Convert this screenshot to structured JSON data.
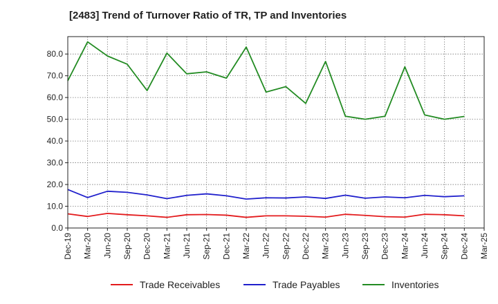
{
  "chart_data": {
    "type": "line",
    "title": "[2483]  Trend of Turnover Ratio of TR, TP and Inventories",
    "xlabel": "",
    "ylabel": "",
    "x": [
      "Dec-19",
      "Mar-20",
      "Jun-20",
      "Sep-20",
      "Dec-20",
      "Mar-21",
      "Jun-21",
      "Sep-21",
      "Dec-21",
      "Mar-22",
      "Jun-22",
      "Sep-22",
      "Dec-22",
      "Mar-23",
      "Jun-23",
      "Sep-23",
      "Dec-23",
      "Mar-24",
      "Jun-24",
      "Sep-24",
      "Dec-24",
      "Mar-25"
    ],
    "ylim": [
      0,
      88
    ],
    "yticks": [
      0,
      10,
      20,
      30,
      40,
      50,
      60,
      70,
      80
    ],
    "ytick_labels": [
      "0.0",
      "10.0",
      "20.0",
      "30.0",
      "40.0",
      "50.0",
      "60.0",
      "70.0",
      "80.0"
    ],
    "grid": true,
    "legend_position": "bottom",
    "series": [
      {
        "name": "Trade Receivables",
        "color": "#e31a1c",
        "values": [
          6.5,
          5.3,
          6.7,
          6.1,
          5.6,
          4.9,
          6.1,
          6.2,
          5.9,
          4.9,
          5.6,
          5.6,
          5.4,
          5.0,
          6.3,
          5.8,
          5.2,
          5.0,
          6.3,
          6.1,
          5.6,
          null
        ]
      },
      {
        "name": "Trade Payables",
        "color": "#1f1fcc",
        "values": [
          17.7,
          14.0,
          16.9,
          16.4,
          15.2,
          13.5,
          15.0,
          15.7,
          14.8,
          13.3,
          13.9,
          13.8,
          14.3,
          13.6,
          15.1,
          13.7,
          14.3,
          13.9,
          15.0,
          14.4,
          14.8,
          null
        ]
      },
      {
        "name": "Inventories",
        "color": "#228b22",
        "values": [
          67.7,
          85.6,
          79.1,
          75.3,
          63.2,
          80.4,
          70.9,
          71.8,
          68.9,
          83.2,
          62.5,
          65.0,
          57.3,
          76.6,
          51.4,
          50.0,
          51.4,
          74.1,
          52.0,
          50.0,
          51.3,
          null
        ]
      }
    ]
  }
}
